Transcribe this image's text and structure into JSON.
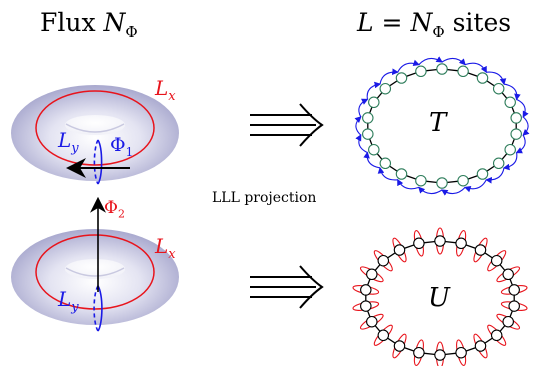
{
  "headers": {
    "left_prefix": "Flux ",
    "left_symbol": "N",
    "left_sub": "Φ",
    "right_symbol_L": "L",
    "right_equals": " = ",
    "right_symbol_N": "N",
    "right_sub": "Φ",
    "right_suffix": " sites"
  },
  "torus_labels": {
    "lx": "L",
    "lx_sub": "x",
    "ly": "L",
    "ly_sub": "y",
    "phi1": "Φ",
    "phi1_sub": "1",
    "phi2": "Φ",
    "phi2_sub": "2"
  },
  "middle_label": "LLL projection",
  "ring_labels": {
    "top": "T",
    "bottom": "U"
  },
  "ring_sites": 22,
  "colors": {
    "red": "#e8141c",
    "blue": "#1a1ae6",
    "site_fill_top": "#ffffff",
    "site_stroke_top": "#2e7d5b",
    "black": "#000000",
    "torus_outer": "#b8b8d8",
    "torus_inner": "#ffffff"
  }
}
